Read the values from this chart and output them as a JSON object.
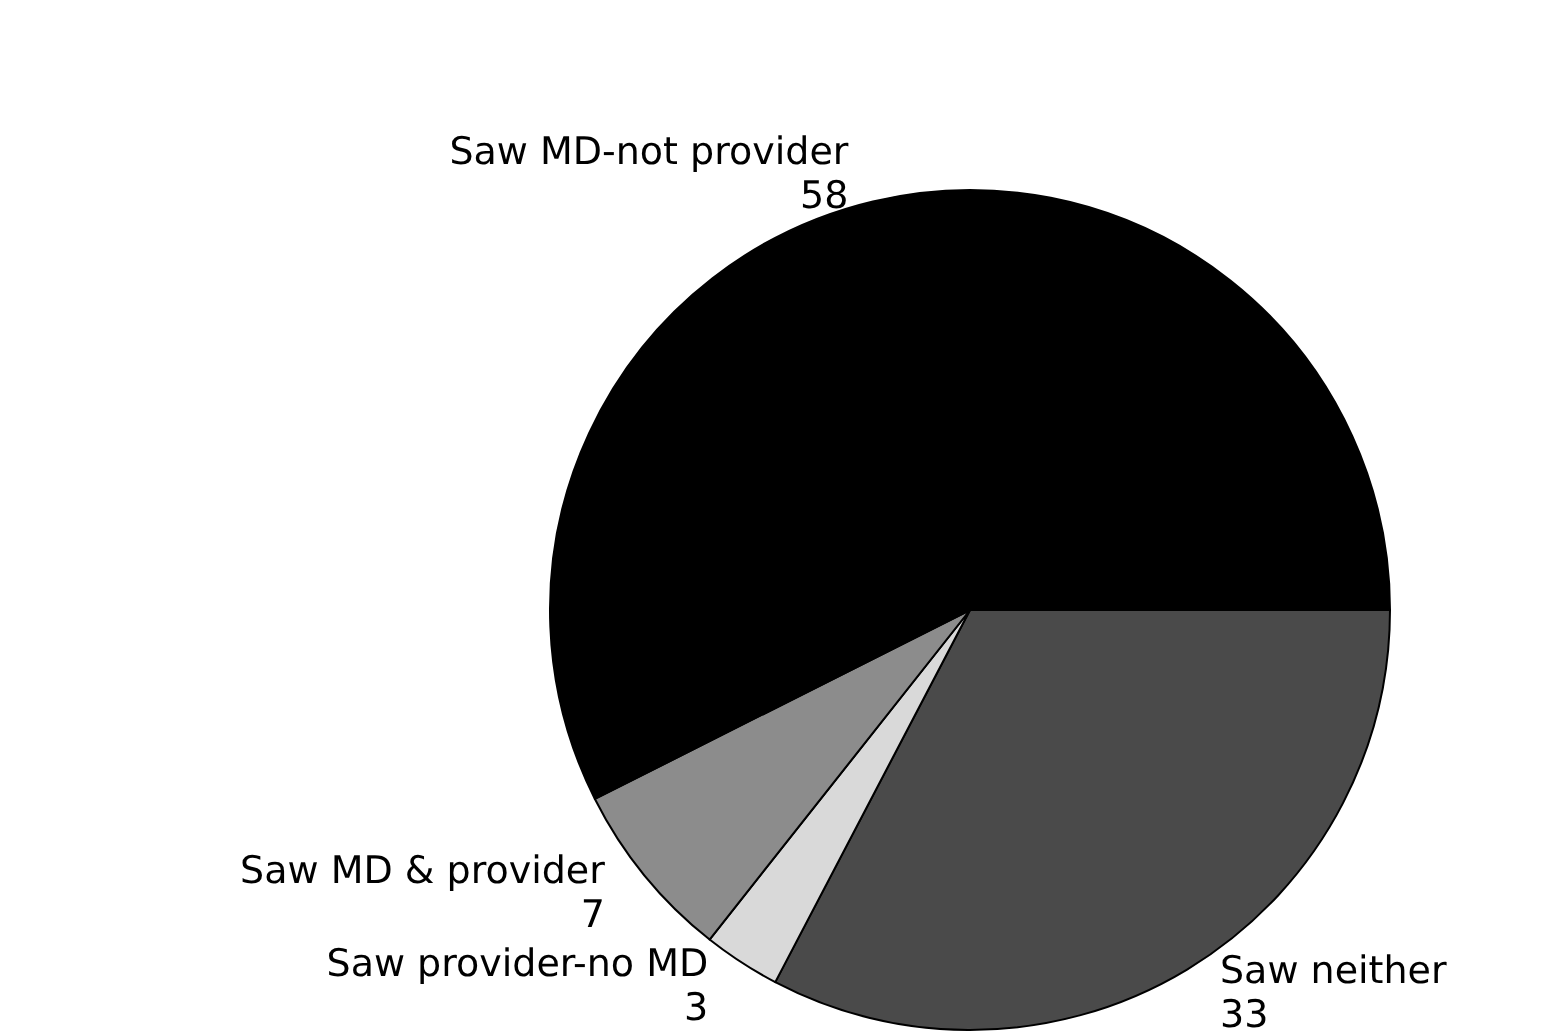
{
  "chart_data": {
    "type": "pie",
    "categories": [
      "Saw neither",
      "Saw provider-no MD",
      "Saw MD & provider",
      "Saw MD-not provider"
    ],
    "values": [
      33,
      3,
      7,
      58
    ],
    "colors": [
      "#4a4a4a",
      "#d9d9d9",
      "#8c8c8c",
      "#000000"
    ],
    "data_labels": true,
    "legend": false
  }
}
